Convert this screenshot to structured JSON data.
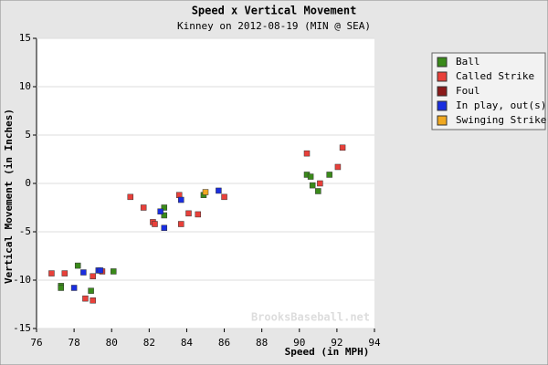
{
  "chart_data": {
    "type": "scatter",
    "title": "Speed x Vertical Movement",
    "subtitle": "Kinney on 2012-08-19 (MIN @ SEA)",
    "x_label": "Speed (in MPH)",
    "y_label": "Vertical Movement (in Inches)",
    "watermark": "BrooksBaseball.net",
    "xlim": [
      76,
      94
    ],
    "xticks": [
      76,
      78,
      80,
      82,
      84,
      86,
      88,
      90,
      92,
      94
    ],
    "ylim": [
      -15,
      15
    ],
    "yticks": [
      -15,
      -10,
      -5,
      0,
      5,
      10,
      15
    ],
    "grid": true,
    "legend": "right",
    "series": [
      {
        "name": "Ball",
        "color": "#3a8a1a",
        "x": [
          77.3,
          77.3,
          78.2,
          78.9,
          80.1,
          82.8,
          82.8,
          84.9,
          90.4,
          90.6,
          91.6,
          90.7,
          91.0
        ],
        "values": [
          -10.6,
          -10.8,
          -8.5,
          -11.1,
          -9.1,
          -2.5,
          -3.3,
          -1.2,
          0.9,
          0.7,
          0.9,
          -0.2,
          -0.8
        ]
      },
      {
        "name": "Called Strike",
        "color": "#e8403a",
        "x": [
          76.8,
          77.5,
          78.6,
          79.0,
          79.0,
          79.5,
          81.0,
          81.7,
          82.2,
          82.3,
          83.6,
          83.7,
          84.1,
          84.6,
          86.0,
          90.4,
          92.3,
          92.05,
          91.1
        ],
        "values": [
          -9.3,
          -9.3,
          -11.9,
          -9.6,
          -12.1,
          -9.1,
          -1.4,
          -2.5,
          -4.0,
          -4.2,
          -1.2,
          -4.2,
          -3.1,
          -3.2,
          -1.4,
          3.1,
          3.7,
          1.7,
          0.0
        ]
      },
      {
        "name": "Foul",
        "color": "#8b1a1a",
        "x": [],
        "values": []
      },
      {
        "name": "In play, out(s)",
        "color": "#1a2ee0",
        "x": [
          78.0,
          78.5,
          79.3,
          79.4,
          82.6,
          82.8,
          83.7,
          85.7
        ],
        "values": [
          -10.8,
          -9.2,
          -9.0,
          -9.0,
          -2.9,
          -4.6,
          -1.7,
          -0.75
        ]
      },
      {
        "name": "Swinging Strike",
        "color": "#f0a820",
        "x": [
          85.0
        ],
        "values": [
          -0.9
        ]
      }
    ]
  }
}
